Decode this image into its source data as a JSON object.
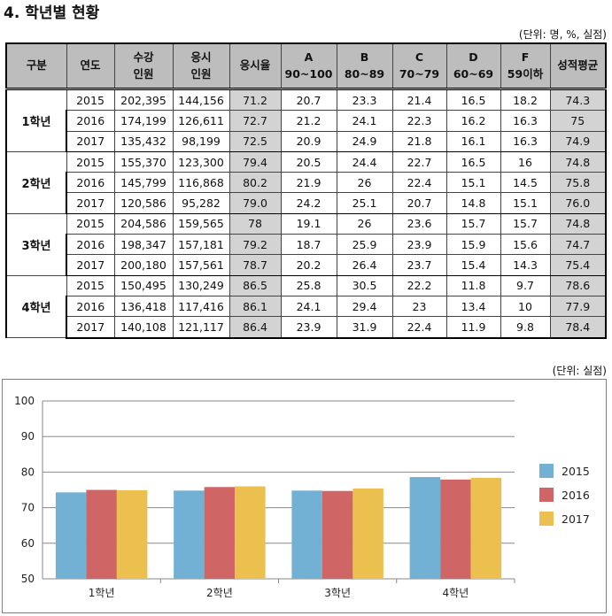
{
  "page": {
    "title": "4. 학년별 현황",
    "unit_note": "(단위: 명, %, 실점)",
    "chart_unit_note": "(단위: 실점)"
  },
  "table": {
    "headers": [
      {
        "l1": "구분",
        "l2": ""
      },
      {
        "l1": "연도",
        "l2": ""
      },
      {
        "l1": "수강",
        "l2": "인원"
      },
      {
        "l1": "응시",
        "l2": "인원"
      },
      {
        "l1": "응시율",
        "l2": ""
      },
      {
        "l1": "A",
        "l2": "90~100"
      },
      {
        "l1": "B",
        "l2": "80~89"
      },
      {
        "l1": "C",
        "l2": "70~79"
      },
      {
        "l1": "D",
        "l2": "60~69"
      },
      {
        "l1": "F",
        "l2": "59이하"
      },
      {
        "l1": "성적평균",
        "l2": ""
      }
    ],
    "groups": [
      {
        "label": "1학년",
        "rows": [
          [
            "2015",
            "202,395",
            "144,156",
            "71.2",
            "20.7",
            "23.3",
            "21.4",
            "16.5",
            "18.2",
            "74.3"
          ],
          [
            "2016",
            "174,199",
            "126,611",
            "72.7",
            "21.2",
            "24.1",
            "22.3",
            "16.2",
            "16.3",
            "75"
          ],
          [
            "2017",
            "135,432",
            "98,199",
            "72.5",
            "20.9",
            "24.9",
            "21.8",
            "16.1",
            "16.3",
            "74.9"
          ]
        ]
      },
      {
        "label": "2학년",
        "rows": [
          [
            "2015",
            "155,370",
            "123,300",
            "79.4",
            "20.5",
            "24.4",
            "22.7",
            "16.5",
            "16",
            "74.8"
          ],
          [
            "2016",
            "145,799",
            "116,868",
            "80.2",
            "21.9",
            "26",
            "22.4",
            "15.1",
            "14.5",
            "75.8"
          ],
          [
            "2017",
            "120,586",
            "95,282",
            "79.0",
            "24.2",
            "25.1",
            "20.7",
            "14.8",
            "15.1",
            "76.0"
          ]
        ]
      },
      {
        "label": "3학년",
        "rows": [
          [
            "2015",
            "204,586",
            "159,565",
            "78",
            "19.1",
            "26",
            "23.6",
            "15.7",
            "15.7",
            "74.8"
          ],
          [
            "2016",
            "198,347",
            "157,181",
            "79.2",
            "18.7",
            "25.9",
            "23.9",
            "15.9",
            "15.6",
            "74.7"
          ],
          [
            "2017",
            "200,180",
            "157,561",
            "78.7",
            "20.2",
            "26.4",
            "23.7",
            "15.4",
            "14.3",
            "75.4"
          ]
        ]
      },
      {
        "label": "4학년",
        "rows": [
          [
            "2015",
            "150,495",
            "130,249",
            "86.5",
            "25.8",
            "30.5",
            "22.2",
            "11.8",
            "9.7",
            "78.6"
          ],
          [
            "2016",
            "136,418",
            "117,416",
            "86.1",
            "24.1",
            "29.4",
            "23",
            "13.4",
            "10",
            "77.9"
          ],
          [
            "2017",
            "140,108",
            "121,117",
            "86.4",
            "23.9",
            "31.9",
            "22.4",
            "11.9",
            "9.8",
            "78.4"
          ]
        ]
      }
    ]
  },
  "chart_data": {
    "type": "bar",
    "title": "",
    "xlabel": "",
    "ylabel": "",
    "categories": [
      "1학년",
      "2학년",
      "3학년",
      "4학년"
    ],
    "series": [
      {
        "name": "2015",
        "color": "#72b0d4",
        "values": [
          74.3,
          74.8,
          74.8,
          78.6
        ]
      },
      {
        "name": "2016",
        "color": "#d06565",
        "values": [
          75,
          75.8,
          74.7,
          77.9
        ]
      },
      {
        "name": "2017",
        "color": "#ecc04f",
        "values": [
          74.9,
          76.0,
          75.4,
          78.4
        ]
      }
    ],
    "ylim": [
      50,
      100
    ],
    "yticks": [
      "50",
      "60",
      "70",
      "80",
      "90",
      "100"
    ],
    "grid": true,
    "legend": "right"
  }
}
